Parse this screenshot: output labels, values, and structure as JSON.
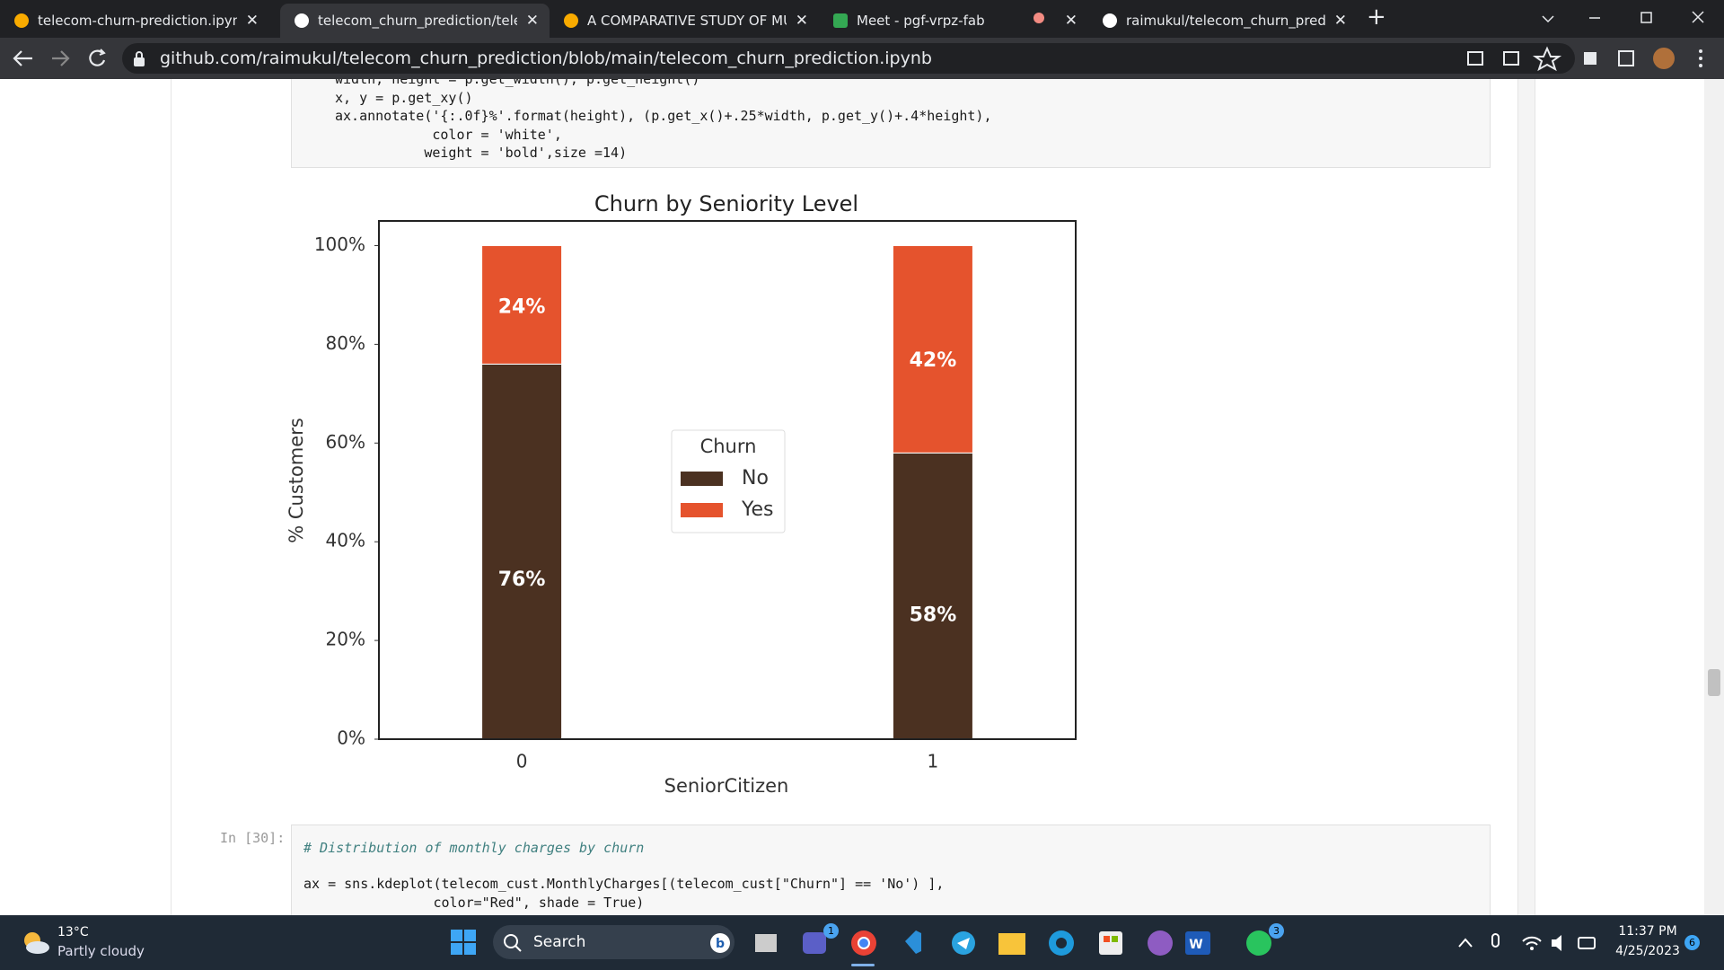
{
  "browser": {
    "tabs": [
      "telecom-churn-prediction.ipynb",
      "telecom_churn_prediction/telecom",
      "A COMPARATIVE STUDY OF MULTI",
      "Meet - pgf-vrpz-fab",
      "raimukul/telecom_churn_prediction"
    ],
    "url": "github.com/raimukul/telecom_churn_prediction/blob/main/telecom_churn_prediction.ipynb"
  },
  "notebook": {
    "top_cell_code": [
      "width, height = p.get_width(), p.get_height()",
      "x, y = p.get_xy()",
      "ax.annotate('{:.0f}%'.format(height), (p.get_x()+.25*width, p.get_y()+.4*height),",
      "            color = 'white',",
      "           weight = 'bold',size =14)"
    ],
    "bottom_cell_prompt": "In [30]:",
    "bottom_cell_code": [
      "# Distribution of monthly charges by churn",
      "ax = sns.kdeplot(telecom_cust.MonthlyCharges[(telecom_cust[\"Churn\"] == 'No') ],",
      "                color=\"Red\", shade = True)"
    ]
  },
  "chart_data": {
    "type": "stacked_bar",
    "title": "Churn by Seniority Level",
    "x_label": "SeniorCitizen",
    "y_label": "% Customers",
    "categories": [
      "0",
      "1"
    ],
    "series": [
      {
        "name": "No",
        "color": "#4b3121",
        "values": [
          76,
          58
        ],
        "value_labels": [
          "76%",
          "58%"
        ]
      },
      {
        "name": "Yes",
        "color": "#e5532d",
        "values": [
          24,
          42
        ],
        "value_labels": [
          "24%",
          "42%"
        ]
      }
    ],
    "ylim": [
      0,
      105
    ],
    "yticks": [
      {
        "value": 0,
        "label": "0%"
      },
      {
        "value": 20,
        "label": "20%"
      },
      {
        "value": 40,
        "label": "40%"
      },
      {
        "value": 60,
        "label": "60%"
      },
      {
        "value": 80,
        "label": "80%"
      },
      {
        "value": 100,
        "label": "100%"
      }
    ],
    "legend_title": "Churn",
    "legend_position": "center"
  },
  "taskbar": {
    "temperature": "13°C",
    "weather": "Partly cloudy",
    "search": "Search",
    "time": "11:37 PM",
    "date": "4/25/2023",
    "badges": [
      "1",
      "3",
      "6"
    ]
  }
}
